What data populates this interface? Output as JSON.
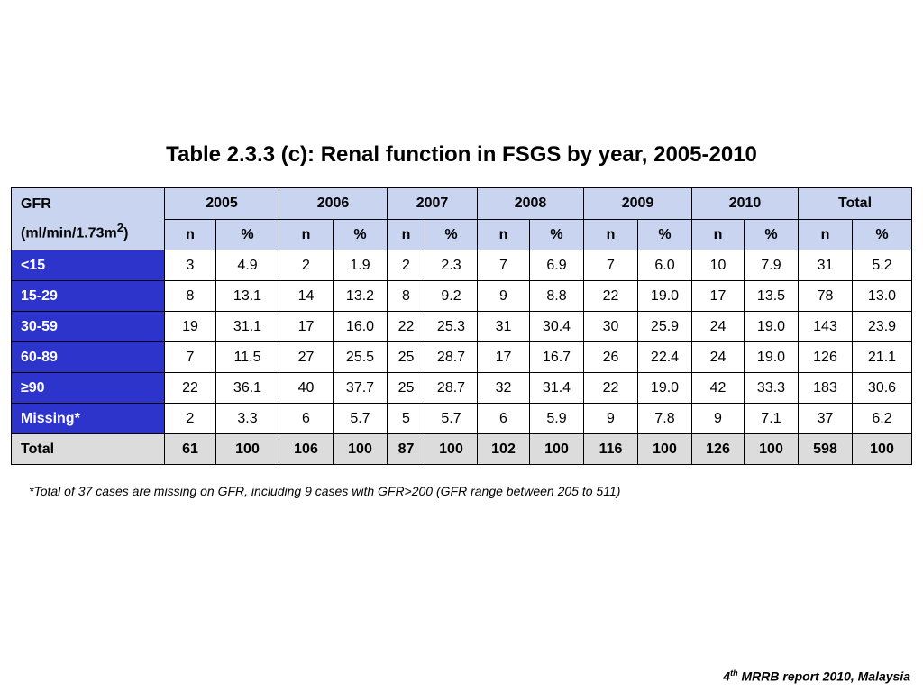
{
  "title": "Table 2.3.3 (c): Renal function in FSGS by year, 2005-2010",
  "table": {
    "corner_line1": "GFR",
    "corner_line2": "(ml/min/1.73m",
    "corner_sup": "2",
    "corner_close": ")",
    "years": [
      "2005",
      "2006",
      "2007",
      "2008",
      "2009",
      "2010",
      "Total"
    ],
    "sub_headers": [
      "n",
      "%"
    ],
    "rows": [
      {
        "label": "<15",
        "cells": [
          "3",
          "4.9",
          "2",
          "1.9",
          "2",
          "2.3",
          "7",
          "6.9",
          "7",
          "6.0",
          "10",
          "7.9",
          "31",
          "5.2"
        ]
      },
      {
        "label": "15-29",
        "cells": [
          "8",
          "13.1",
          "14",
          "13.2",
          "8",
          "9.2",
          "9",
          "8.8",
          "22",
          "19.0",
          "17",
          "13.5",
          "78",
          "13.0"
        ]
      },
      {
        "label": "30-59",
        "cells": [
          "19",
          "31.1",
          "17",
          "16.0",
          "22",
          "25.3",
          "31",
          "30.4",
          "30",
          "25.9",
          "24",
          "19.0",
          "143",
          "23.9"
        ]
      },
      {
        "label": "60-89",
        "cells": [
          "7",
          "11.5",
          "27",
          "25.5",
          "25",
          "28.7",
          "17",
          "16.7",
          "26",
          "22.4",
          "24",
          "19.0",
          "126",
          "21.1"
        ]
      },
      {
        "label": "≥90",
        "cells": [
          "22",
          "36.1",
          "40",
          "37.7",
          "25",
          "28.7",
          "32",
          "31.4",
          "22",
          "19.0",
          "42",
          "33.3",
          "183",
          "30.6"
        ]
      },
      {
        "label": "Missing*",
        "cells": [
          "2",
          "3.3",
          "6",
          "5.7",
          "5",
          "5.7",
          "6",
          "5.9",
          "9",
          "7.8",
          "9",
          "7.1",
          "37",
          "6.2"
        ]
      }
    ],
    "total": {
      "label": "Total",
      "cells": [
        "61",
        "100",
        "106",
        "100",
        "87",
        "100",
        "102",
        "100",
        "116",
        "100",
        "126",
        "100",
        "598",
        "100"
      ]
    }
  },
  "footnote": "*Total of 37 cases are missing on GFR, including 9 cases with GFR>200 (GFR range between 205 to 511)",
  "source": {
    "num": "4",
    "sup": "th",
    "text": " MRRB report 2010, Malaysia"
  },
  "colors": {
    "header_bg": "#c9d5f0",
    "row_label_bg": "#2d34cc",
    "total_bg": "#dcdcdc"
  }
}
